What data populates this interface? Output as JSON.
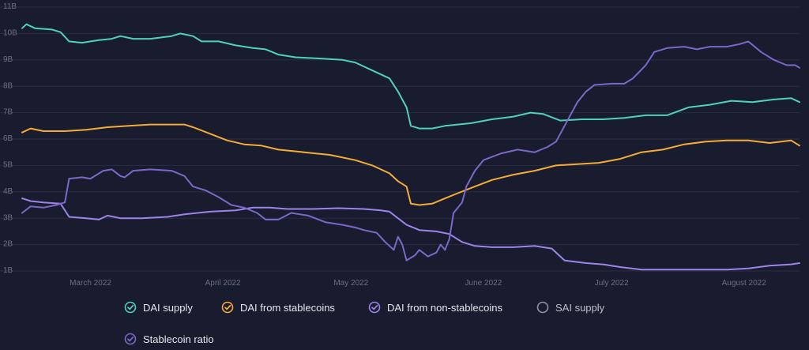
{
  "chart_data": {
    "type": "line",
    "ylim": [
      1,
      11
    ],
    "y_ticks": [
      "1B",
      "2B",
      "3B",
      "4B",
      "5B",
      "6B",
      "7B",
      "8B",
      "9B",
      "10B",
      "11B"
    ],
    "x_ticks": [
      "March 2022",
      "April 2022",
      "May 2022",
      "June 2022",
      "July 2022",
      "August 2022"
    ],
    "x_tick_days": [
      16,
      47,
      77,
      108,
      138,
      169
    ],
    "grid": true,
    "legend_position": "bottom",
    "series": [
      {
        "name": "DAI supply",
        "color": "#4fd1bd",
        "points": [
          [
            0,
            10.2
          ],
          [
            1,
            10.35
          ],
          [
            3,
            10.2
          ],
          [
            7,
            10.15
          ],
          [
            9,
            10.05
          ],
          [
            11,
            9.7
          ],
          [
            14,
            9.65
          ],
          [
            18,
            9.75
          ],
          [
            21,
            9.8
          ],
          [
            23,
            9.9
          ],
          [
            26,
            9.8
          ],
          [
            30,
            9.8
          ],
          [
            35,
            9.9
          ],
          [
            37,
            10.0
          ],
          [
            40,
            9.9
          ],
          [
            42,
            9.7
          ],
          [
            46,
            9.7
          ],
          [
            50,
            9.55
          ],
          [
            54,
            9.45
          ],
          [
            57,
            9.4
          ],
          [
            60,
            9.2
          ],
          [
            64,
            9.1
          ],
          [
            70,
            9.05
          ],
          [
            75,
            9.0
          ],
          [
            78,
            8.9
          ],
          [
            82,
            8.6
          ],
          [
            86,
            8.3
          ],
          [
            88,
            7.8
          ],
          [
            90,
            7.2
          ],
          [
            91,
            6.5
          ],
          [
            93,
            6.4
          ],
          [
            96,
            6.4
          ],
          [
            99,
            6.5
          ],
          [
            105,
            6.6
          ],
          [
            110,
            6.75
          ],
          [
            115,
            6.85
          ],
          [
            119,
            7.0
          ],
          [
            122,
            6.95
          ],
          [
            126,
            6.7
          ],
          [
            131,
            6.75
          ],
          [
            136,
            6.75
          ],
          [
            141,
            6.8
          ],
          [
            146,
            6.9
          ],
          [
            151,
            6.9
          ],
          [
            156,
            7.2
          ],
          [
            161,
            7.3
          ],
          [
            166,
            7.45
          ],
          [
            171,
            7.4
          ],
          [
            176,
            7.5
          ],
          [
            180,
            7.55
          ],
          [
            182,
            7.4
          ]
        ]
      },
      {
        "name": "DAI from stablecoins",
        "color": "#f5ac37",
        "points": [
          [
            0,
            6.25
          ],
          [
            2,
            6.4
          ],
          [
            5,
            6.3
          ],
          [
            10,
            6.3
          ],
          [
            15,
            6.35
          ],
          [
            20,
            6.45
          ],
          [
            25,
            6.5
          ],
          [
            30,
            6.55
          ],
          [
            35,
            6.55
          ],
          [
            38,
            6.55
          ],
          [
            40,
            6.45
          ],
          [
            44,
            6.2
          ],
          [
            48,
            5.95
          ],
          [
            52,
            5.8
          ],
          [
            56,
            5.75
          ],
          [
            60,
            5.6
          ],
          [
            66,
            5.5
          ],
          [
            72,
            5.4
          ],
          [
            78,
            5.2
          ],
          [
            82,
            5.0
          ],
          [
            86,
            4.7
          ],
          [
            88,
            4.4
          ],
          [
            90,
            4.2
          ],
          [
            91,
            3.55
          ],
          [
            93,
            3.5
          ],
          [
            96,
            3.55
          ],
          [
            99,
            3.75
          ],
          [
            102,
            3.95
          ],
          [
            106,
            4.2
          ],
          [
            110,
            4.45
          ],
          [
            115,
            4.65
          ],
          [
            120,
            4.8
          ],
          [
            125,
            5.0
          ],
          [
            130,
            5.05
          ],
          [
            135,
            5.1
          ],
          [
            140,
            5.25
          ],
          [
            145,
            5.5
          ],
          [
            150,
            5.6
          ],
          [
            155,
            5.8
          ],
          [
            160,
            5.9
          ],
          [
            165,
            5.95
          ],
          [
            170,
            5.95
          ],
          [
            175,
            5.85
          ],
          [
            180,
            5.95
          ],
          [
            182,
            5.75
          ]
        ]
      },
      {
        "name": "DAI from non-stablecoins",
        "color": "#9c84e8",
        "points": [
          [
            0,
            3.75
          ],
          [
            2,
            3.65
          ],
          [
            5,
            3.6
          ],
          [
            9,
            3.55
          ],
          [
            11,
            3.05
          ],
          [
            15,
            3.0
          ],
          [
            18,
            2.95
          ],
          [
            20,
            3.1
          ],
          [
            23,
            3.0
          ],
          [
            28,
            3.0
          ],
          [
            34,
            3.05
          ],
          [
            38,
            3.15
          ],
          [
            44,
            3.25
          ],
          [
            50,
            3.3
          ],
          [
            54,
            3.4
          ],
          [
            58,
            3.4
          ],
          [
            62,
            3.35
          ],
          [
            68,
            3.35
          ],
          [
            74,
            3.38
          ],
          [
            80,
            3.35
          ],
          [
            84,
            3.3
          ],
          [
            86,
            3.25
          ],
          [
            90,
            2.75
          ],
          [
            93,
            2.55
          ],
          [
            97,
            2.5
          ],
          [
            100,
            2.4
          ],
          [
            103,
            2.1
          ],
          [
            106,
            1.95
          ],
          [
            110,
            1.9
          ],
          [
            115,
            1.9
          ],
          [
            120,
            1.95
          ],
          [
            124,
            1.85
          ],
          [
            127,
            1.4
          ],
          [
            132,
            1.3
          ],
          [
            136,
            1.25
          ],
          [
            140,
            1.15
          ],
          [
            145,
            1.05
          ],
          [
            150,
            1.05
          ],
          [
            155,
            1.05
          ],
          [
            160,
            1.05
          ],
          [
            165,
            1.05
          ],
          [
            170,
            1.1
          ],
          [
            175,
            1.2
          ],
          [
            180,
            1.25
          ],
          [
            182,
            1.3
          ]
        ]
      },
      {
        "name": "Stablecoin ratio",
        "color": "#7b68c8",
        "points": [
          [
            0,
            3.2
          ],
          [
            2,
            3.45
          ],
          [
            5,
            3.4
          ],
          [
            8,
            3.5
          ],
          [
            10,
            3.6
          ],
          [
            11,
            4.5
          ],
          [
            14,
            4.55
          ],
          [
            16,
            4.5
          ],
          [
            19,
            4.8
          ],
          [
            21,
            4.85
          ],
          [
            23,
            4.6
          ],
          [
            24,
            4.55
          ],
          [
            26,
            4.8
          ],
          [
            30,
            4.85
          ],
          [
            35,
            4.8
          ],
          [
            38,
            4.6
          ],
          [
            40,
            4.2
          ],
          [
            43,
            4.05
          ],
          [
            46,
            3.8
          ],
          [
            49,
            3.5
          ],
          [
            52,
            3.4
          ],
          [
            55,
            3.2
          ],
          [
            57,
            2.95
          ],
          [
            60,
            2.95
          ],
          [
            63,
            3.2
          ],
          [
            67,
            3.1
          ],
          [
            71,
            2.85
          ],
          [
            75,
            2.75
          ],
          [
            78,
            2.65
          ],
          [
            80,
            2.55
          ],
          [
            83,
            2.45
          ],
          [
            85,
            2.1
          ],
          [
            87,
            1.8
          ],
          [
            88,
            2.3
          ],
          [
            89,
            2.0
          ],
          [
            90,
            1.4
          ],
          [
            92,
            1.6
          ],
          [
            93,
            1.8
          ],
          [
            95,
            1.55
          ],
          [
            97,
            1.7
          ],
          [
            98,
            2.0
          ],
          [
            99,
            1.8
          ],
          [
            100,
            2.2
          ],
          [
            101,
            3.2
          ],
          [
            103,
            3.6
          ],
          [
            104,
            4.2
          ],
          [
            106,
            4.8
          ],
          [
            108,
            5.2
          ],
          [
            112,
            5.45
          ],
          [
            116,
            5.6
          ],
          [
            120,
            5.5
          ],
          [
            123,
            5.7
          ],
          [
            125,
            5.9
          ],
          [
            126,
            6.2
          ],
          [
            128,
            6.8
          ],
          [
            130,
            7.4
          ],
          [
            132,
            7.8
          ],
          [
            134,
            8.05
          ],
          [
            138,
            8.1
          ],
          [
            141,
            8.1
          ],
          [
            143,
            8.3
          ],
          [
            146,
            8.8
          ],
          [
            148,
            9.3
          ],
          [
            151,
            9.45
          ],
          [
            155,
            9.5
          ],
          [
            158,
            9.4
          ],
          [
            161,
            9.5
          ],
          [
            165,
            9.5
          ],
          [
            168,
            9.6
          ],
          [
            170,
            9.7
          ],
          [
            173,
            9.3
          ],
          [
            176,
            9.0
          ],
          [
            179,
            8.8
          ],
          [
            181,
            8.8
          ],
          [
            182,
            8.7
          ]
        ]
      }
    ]
  },
  "legend": [
    {
      "label": "DAI supply",
      "color": "#4fd1bd",
      "enabled": true
    },
    {
      "label": "DAI from stablecoins",
      "color": "#f5ac37",
      "enabled": true
    },
    {
      "label": "DAI from non-stablecoins",
      "color": "#9c84e8",
      "enabled": true
    },
    {
      "label": "SAI supply",
      "color": "#8f92a1",
      "enabled": false
    },
    {
      "label": "Stablecoin ratio",
      "color": "#7b68c8",
      "enabled": true
    }
  ]
}
